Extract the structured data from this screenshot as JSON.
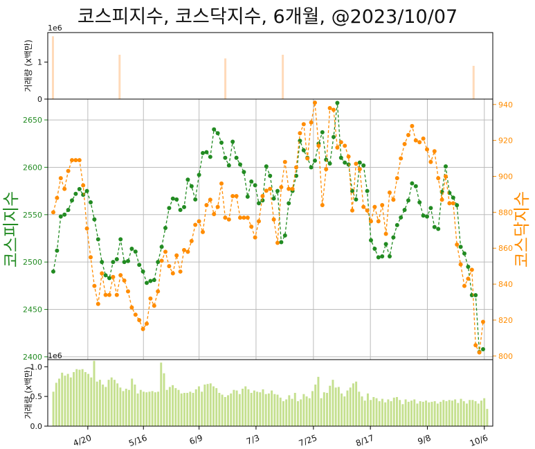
{
  "chart_data": {
    "type": "line",
    "title": "코스피지수, 코스닥지수, 6개월, @2023/10/07",
    "colors": {
      "kospi": "#228b22",
      "kosdaq": "#ff8c00",
      "volume_top": "#ffdab9",
      "volume_bottom": "#c5e08f",
      "grid": "#bbbbbb"
    },
    "top_panel": {
      "type": "bar",
      "ylabel": "거래량 (x백만)",
      "scale_label": "1e6",
      "ylim": [
        0,
        1.8
      ],
      "yticks": [
        "0",
        "1"
      ],
      "bar_positions": [
        0,
        29,
        75,
        100,
        183
      ],
      "values": [
        1.7,
        1.2,
        1.1,
        1.2,
        0.9
      ]
    },
    "main_panel": {
      "left_ylabel": "코스피지수",
      "right_ylabel": "코스닥지수",
      "left_ylim": [
        2397,
        2672
      ],
      "right_ylim": [
        798,
        943
      ],
      "left_ticks": [
        "2400",
        "2450",
        "2500",
        "2550",
        "2600",
        "2650"
      ],
      "right_ticks": [
        "800",
        "820",
        "840",
        "860",
        "880",
        "900",
        "920",
        "940"
      ],
      "series": [
        {
          "name": "코스피지수",
          "axis": "left",
          "values": [
            2490,
            2512,
            2548,
            2550,
            2555,
            2565,
            2572,
            2577,
            2571,
            2575,
            2563,
            2545,
            2524,
            2500,
            2486,
            2483,
            2500,
            2503,
            2524,
            2500,
            2501,
            2514,
            2511,
            2497,
            2490,
            2478,
            2480,
            2481,
            2500,
            2516,
            2536,
            2557,
            2567,
            2566,
            2555,
            2558,
            2587,
            2580,
            2566,
            2592,
            2615,
            2616,
            2611,
            2640,
            2636,
            2626,
            2610,
            2602,
            2627,
            2610,
            2603,
            2595,
            2569,
            2585,
            2581,
            2562,
            2565,
            2601,
            2591,
            2567,
            2575,
            2521,
            2528,
            2562,
            2575,
            2591,
            2628,
            2618,
            2610,
            2600,
            2607,
            2625,
            2637,
            2608,
            2604,
            2632,
            2668,
            2610,
            2605,
            2603,
            2575,
            2566,
            2605,
            2602,
            2575,
            2523,
            2514,
            2505,
            2506,
            2519,
            2506,
            2526,
            2539,
            2547,
            2555,
            2565,
            2583,
            2580,
            2563,
            2549,
            2548,
            2557,
            2537,
            2535,
            2574,
            2601,
            2573,
            2568,
            2560,
            2516,
            2509,
            2495,
            2465,
            2465,
            2405,
            2408
          ]
        },
        {
          "name": "코스닥지수",
          "axis": "right",
          "values": [
            880,
            888,
            899,
            893,
            903,
            909,
            909,
            909,
            895,
            871,
            855,
            839,
            829,
            846,
            834,
            834,
            844,
            834,
            845,
            842,
            836,
            827,
            823,
            820,
            815,
            818,
            832,
            828,
            836,
            853,
            858,
            850,
            846,
            856,
            847,
            859,
            858,
            864,
            873,
            875,
            869,
            884,
            887,
            879,
            883,
            896,
            877,
            876,
            889,
            889,
            877,
            877,
            877,
            872,
            866,
            875,
            889,
            892,
            893,
            876,
            863,
            894,
            908,
            893,
            893,
            905,
            924,
            929,
            910,
            930,
            941,
            917,
            884,
            904,
            938,
            937,
            916,
            919,
            917,
            911,
            881,
            907,
            904,
            883,
            881,
            875,
            883,
            875,
            884,
            868,
            891,
            887,
            899,
            910,
            918,
            923,
            928,
            920,
            919,
            921,
            915,
            908,
            914,
            899,
            887,
            900,
            885,
            885,
            862,
            851,
            839,
            843,
            848,
            806,
            802,
            819
          ]
        }
      ]
    },
    "bottom_panel": {
      "type": "bar",
      "ylabel": "거래량 (x백만)",
      "scale_label": "1e6",
      "ylim": [
        0,
        1.12
      ],
      "yticks": [
        "0.0",
        "0.5",
        "1.0"
      ],
      "values": [
        0.58,
        0.73,
        0.8,
        0.9,
        0.85,
        0.88,
        0.82,
        0.91,
        0.96,
        0.95,
        0.96,
        0.91,
        0.88,
        0.82,
        1.1,
        0.75,
        0.78,
        0.7,
        0.66,
        0.78,
        0.82,
        0.78,
        0.72,
        0.65,
        0.59,
        0.63,
        0.61,
        0.8,
        0.7,
        0.55,
        0.61,
        0.58,
        0.57,
        0.58,
        0.59,
        0.57,
        0.58,
        1.07,
        0.89,
        0.61,
        0.66,
        0.69,
        0.64,
        0.61,
        0.55,
        0.56,
        0.56,
        0.58,
        0.56,
        0.62,
        0.67,
        0.58,
        0.7,
        0.71,
        0.72,
        0.67,
        0.64,
        0.56,
        0.53,
        0.49,
        0.52,
        0.55,
        0.61,
        0.6,
        0.54,
        0.63,
        0.67,
        0.62,
        0.56,
        0.6,
        0.58,
        0.57,
        0.62,
        0.54,
        0.55,
        0.6,
        0.54,
        0.53,
        0.48,
        0.42,
        0.45,
        0.52,
        0.46,
        0.56,
        0.42,
        0.45,
        0.54,
        0.5,
        0.47,
        0.59,
        0.7,
        0.83,
        0.47,
        0.57,
        0.56,
        0.68,
        0.78,
        0.65,
        0.66,
        0.55,
        0.5,
        0.6,
        0.65,
        0.72,
        0.75,
        0.58,
        0.5,
        0.43,
        0.55,
        0.44,
        0.49,
        0.47,
        0.42,
        0.46,
        0.4,
        0.45,
        0.42,
        0.48,
        0.49,
        0.44,
        0.37,
        0.45,
        0.41,
        0.43,
        0.45,
        0.38,
        0.42,
        0.41,
        0.43,
        0.4,
        0.41,
        0.42,
        0.38,
        0.41,
        0.44,
        0.42,
        0.44,
        0.43,
        0.45,
        0.39,
        0.46,
        0.42,
        0.38,
        0.44,
        0.44,
        0.42,
        0.38,
        0.43,
        0.47,
        0.29
      ]
    },
    "x_axis": {
      "tick_labels": [
        "4/20",
        "5/16",
        "6/9",
        "7/3",
        "7/25",
        "8/17",
        "9/8",
        "10/6"
      ],
      "tick_fractions": [
        0.09,
        0.215,
        0.34,
        0.468,
        0.597,
        0.725,
        0.853,
        0.981
      ]
    },
    "grid": true
  }
}
